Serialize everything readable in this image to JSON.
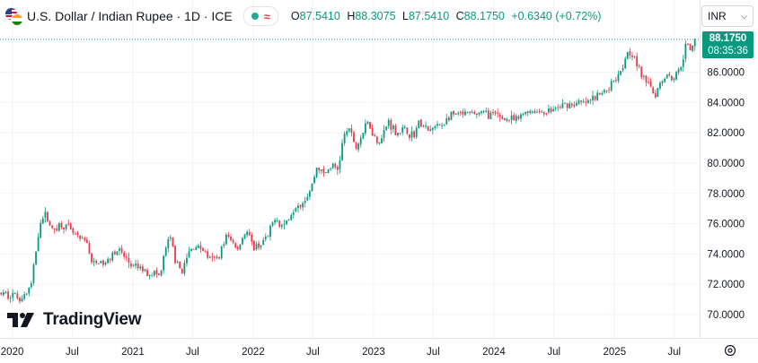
{
  "header": {
    "title": "U.S. Dollar / Indian Rupee · 1D · ICE",
    "ohlc": [
      {
        "key": "O",
        "value": "87.5410"
      },
      {
        "key": "H",
        "value": "88.3075"
      },
      {
        "key": "L",
        "value": "87.5410"
      },
      {
        "key": "C",
        "value": "88.1750"
      }
    ],
    "change": "+0.6340 (+0.72%)"
  },
  "scale_selector": {
    "label": "INR"
  },
  "last_price": {
    "price": "88.1750",
    "countdown": "08:35:36"
  },
  "brand": {
    "name": "TradingView"
  },
  "colors": {
    "up": "#089981",
    "down": "#f23645",
    "grid": "#f0f3fa",
    "text": "#131722"
  },
  "icons": {
    "settings": "gear-icon",
    "dropdown": "chevron-down-icon"
  },
  "chart_data": {
    "type": "candlestick",
    "x_axis_labels": [
      "2020",
      "Jul",
      "2021",
      "Jul",
      "2022",
      "Jul",
      "2023",
      "Jul",
      "2024",
      "Jul",
      "2025",
      "Jul"
    ],
    "y_axis_labels": [
      "70.0000",
      "72.0000",
      "74.0000",
      "76.0000",
      "78.0000",
      "80.0000",
      "82.0000",
      "84.0000",
      "86.0000",
      "88.0000"
    ],
    "ylim": [
      69.3,
      88.6
    ],
    "xlim": [
      "2019-11-25",
      "2025-09-05"
    ],
    "last_close": 88.175,
    "close_path": [
      [
        "2019-11-25",
        71.4
      ],
      [
        "2019-12-15",
        71.3
      ],
      [
        "2020-01-01",
        71.4
      ],
      [
        "2020-01-20",
        71.1
      ],
      [
        "2020-02-10",
        71.3
      ],
      [
        "2020-02-28",
        72.0
      ],
      [
        "2020-03-15",
        74.5
      ],
      [
        "2020-03-25",
        76.2
      ],
      [
        "2020-04-15",
        76.6
      ],
      [
        "2020-05-01",
        75.5
      ],
      [
        "2020-05-20",
        75.9
      ],
      [
        "2020-06-10",
        75.9
      ],
      [
        "2020-07-01",
        75.4
      ],
      [
        "2020-07-25",
        74.9
      ],
      [
        "2020-08-15",
        74.8
      ],
      [
        "2020-09-01",
        73.2
      ],
      [
        "2020-09-20",
        73.5
      ],
      [
        "2020-10-10",
        73.3
      ],
      [
        "2020-11-01",
        74.2
      ],
      [
        "2020-11-20",
        74.2
      ],
      [
        "2020-12-10",
        73.7
      ],
      [
        "2021-01-01",
        73.1
      ],
      [
        "2021-01-20",
        73.1
      ],
      [
        "2021-02-10",
        72.8
      ],
      [
        "2021-03-01",
        72.8
      ],
      [
        "2021-03-25",
        72.5
      ],
      [
        "2021-04-10",
        74.4
      ],
      [
        "2021-04-25",
        75.0
      ],
      [
        "2021-05-15",
        73.2
      ],
      [
        "2021-06-01",
        72.9
      ],
      [
        "2021-06-20",
        74.1
      ],
      [
        "2021-07-10",
        74.6
      ],
      [
        "2021-08-01",
        74.3
      ],
      [
        "2021-08-25",
        73.6
      ],
      [
        "2021-09-15",
        73.7
      ],
      [
        "2021-10-10",
        75.2
      ],
      [
        "2021-10-25",
        74.9
      ],
      [
        "2021-11-15",
        74.4
      ],
      [
        "2021-12-10",
        75.6
      ],
      [
        "2021-12-31",
        74.4
      ],
      [
        "2022-01-20",
        74.6
      ],
      [
        "2022-02-15",
        75.1
      ],
      [
        "2022-03-10",
        76.6
      ],
      [
        "2022-03-25",
        75.8
      ],
      [
        "2022-04-15",
        76.2
      ],
      [
        "2022-05-10",
        77.3
      ],
      [
        "2022-06-01",
        77.5
      ],
      [
        "2022-06-25",
        78.3
      ],
      [
        "2022-07-15",
        79.9
      ],
      [
        "2022-08-01",
        79.2
      ],
      [
        "2022-08-25",
        79.8
      ],
      [
        "2022-09-15",
        79.6
      ],
      [
        "2022-09-30",
        81.5
      ],
      [
        "2022-10-15",
        82.4
      ],
      [
        "2022-11-10",
        81.0
      ],
      [
        "2022-11-25",
        81.8
      ],
      [
        "2022-12-15",
        82.7
      ],
      [
        "2023-01-10",
        81.5
      ],
      [
        "2023-01-25",
        81.6
      ],
      [
        "2023-02-15",
        82.8
      ],
      [
        "2023-03-10",
        82.0
      ],
      [
        "2023-04-01",
        82.2
      ],
      [
        "2023-05-01",
        81.8
      ],
      [
        "2023-05-20",
        82.7
      ],
      [
        "2023-06-15",
        82.1
      ],
      [
        "2023-07-10",
        82.4
      ],
      [
        "2023-08-01",
        82.6
      ],
      [
        "2023-08-20",
        83.1
      ],
      [
        "2023-09-15",
        83.2
      ],
      [
        "2023-10-10",
        83.2
      ],
      [
        "2023-11-10",
        83.3
      ],
      [
        "2023-12-10",
        83.3
      ],
      [
        "2024-01-10",
        83.1
      ],
      [
        "2024-02-10",
        82.9
      ],
      [
        "2024-03-10",
        82.8
      ],
      [
        "2024-04-10",
        83.5
      ],
      [
        "2024-05-10",
        83.4
      ],
      [
        "2024-06-10",
        83.4
      ],
      [
        "2024-07-10",
        83.6
      ],
      [
        "2024-08-10",
        83.9
      ],
      [
        "2024-09-10",
        83.9
      ],
      [
        "2024-10-10",
        84.0
      ],
      [
        "2024-11-10",
        84.4
      ],
      [
        "2024-12-10",
        84.9
      ],
      [
        "2025-01-01",
        85.6
      ],
      [
        "2025-01-25",
        86.4
      ],
      [
        "2025-02-10",
        87.5
      ],
      [
        "2025-02-25",
        87.2
      ],
      [
        "2025-03-15",
        86.2
      ],
      [
        "2025-04-01",
        85.4
      ],
      [
        "2025-04-15",
        85.6
      ],
      [
        "2025-05-01",
        84.4
      ],
      [
        "2025-05-20",
        85.4
      ],
      [
        "2025-06-10",
        85.9
      ],
      [
        "2025-06-25",
        85.6
      ],
      [
        "2025-07-10",
        85.9
      ],
      [
        "2025-07-25",
        86.8
      ],
      [
        "2025-08-05",
        87.8
      ],
      [
        "2025-08-20",
        87.4
      ],
      [
        "2025-09-05",
        88.2
      ]
    ]
  }
}
